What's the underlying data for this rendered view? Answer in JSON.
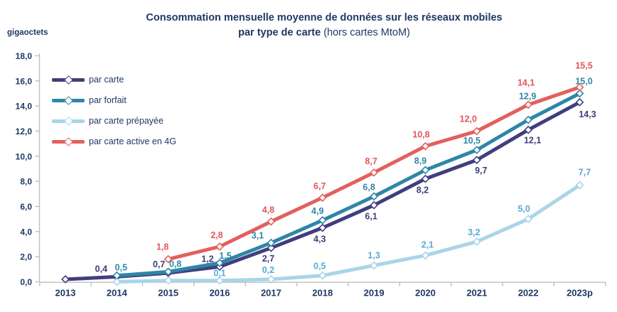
{
  "title": {
    "line1": "Consommation mensuelle moyenne de données sur les réseaux mobiles",
    "line2_bold": "par type de carte",
    "line2_tail": " (hors cartes MtoM)"
  },
  "y_unit": "gigaoctets",
  "colors": {
    "title_text": "#1F3864",
    "axis_text": "#1F3864",
    "axis_line": "#BFBFBF"
  },
  "chart_data": {
    "type": "line",
    "title": "Consommation mensuelle moyenne de données sur les réseaux mobiles par type de carte (hors cartes MtoM)",
    "xlabel": "",
    "ylabel": "gigaoctets",
    "ylim": [
      0,
      18
    ],
    "ystep": 2,
    "grid": false,
    "legend_position": "top-left-inside",
    "categories": [
      "2013",
      "2014",
      "2015",
      "2016",
      "2017",
      "2018",
      "2019",
      "2020",
      "2021",
      "2022",
      "2023p"
    ],
    "y_tick_labels": [
      "0,0",
      "2,0",
      "4,0",
      "6,0",
      "8,0",
      "10,0",
      "12,0",
      "14,0",
      "16,0",
      "18,0"
    ],
    "series": [
      {
        "name": "par carte",
        "color": "#413E7E",
        "label_color": "#3E3C7A",
        "values": [
          0.2,
          0.4,
          0.7,
          1.2,
          2.7,
          4.3,
          6.1,
          8.2,
          9.7,
          12.1,
          14.3
        ],
        "labels": [
          null,
          "0,4",
          "0,7",
          "1,2",
          "2,7",
          "4,3",
          "6,1",
          "8,2",
          "9,7",
          "12,1",
          "14,3"
        ],
        "default_offset": [
          -4,
          20
        ],
        "offsets": {
          "1": [
            -22,
            -7
          ],
          "2": [
            -13,
            -8
          ],
          "3": [
            -17,
            -7
          ],
          "4": [
            -4,
            19
          ],
          "8": [
            6,
            19
          ],
          "9": [
            6,
            19
          ],
          "10": [
            11,
            21
          ]
        }
      },
      {
        "name": "par forfait",
        "color": "#2E86A8",
        "label_color": "#2E86A8",
        "values": [
          null,
          0.5,
          0.8,
          1.5,
          3.1,
          4.9,
          6.8,
          8.9,
          10.5,
          12.9,
          15.0
        ],
        "labels": [
          null,
          "0,5",
          "0,8",
          "1,5",
          "3,1",
          "4,9",
          "6,8",
          "8,9",
          "10,5",
          "12,9",
          "15,0"
        ],
        "default_offset": [
          -7,
          -9
        ],
        "offsets": {
          "1": [
            6,
            -7
          ],
          "2": [
            10,
            -7
          ],
          "3": [
            8,
            -6
          ],
          "4": [
            -19,
            -6
          ],
          "9": [
            -1,
            -29
          ],
          "10": [
            6,
            -13
          ]
        }
      },
      {
        "name": "par carte prépayée",
        "color": "#A9D5E8",
        "label_color": "#58A9D5",
        "values": [
          null,
          0.0,
          0.1,
          0.1,
          0.2,
          0.5,
          1.3,
          2.1,
          3.2,
          5.0,
          7.7
        ],
        "labels": [
          null,
          null,
          null,
          "0,1",
          "0,2",
          "0,5",
          "1,3",
          "2,1",
          "3,2",
          "5,0",
          "7,7"
        ],
        "default_offset": [
          -4,
          -9
        ],
        "offsets": {
          "3": [
            0,
            -6
          ],
          "6": [
            0,
            -10
          ],
          "7": [
            3,
            -11
          ],
          "9": [
            -6,
            -10
          ],
          "10": [
            7,
            -14
          ]
        }
      },
      {
        "name": "par carte active en 4G",
        "color": "#E2605E",
        "label_color": "#E4555A",
        "values": [
          null,
          null,
          1.8,
          2.8,
          4.8,
          6.7,
          8.7,
          10.8,
          12.0,
          14.1,
          15.5
        ],
        "labels": [
          null,
          null,
          "1,8",
          "2,8",
          "4,8",
          "6,7",
          "8,7",
          "10,8",
          "12,0",
          "14,1",
          "15,5"
        ],
        "default_offset": [
          -4,
          -12
        ],
        "offsets": {
          "2": [
            -8,
            -13
          ],
          "7": [
            -6,
            -12
          ],
          "8": [
            -12,
            -13
          ],
          "9": [
            -3,
            -27
          ],
          "10": [
            6,
            -26
          ]
        }
      }
    ]
  }
}
